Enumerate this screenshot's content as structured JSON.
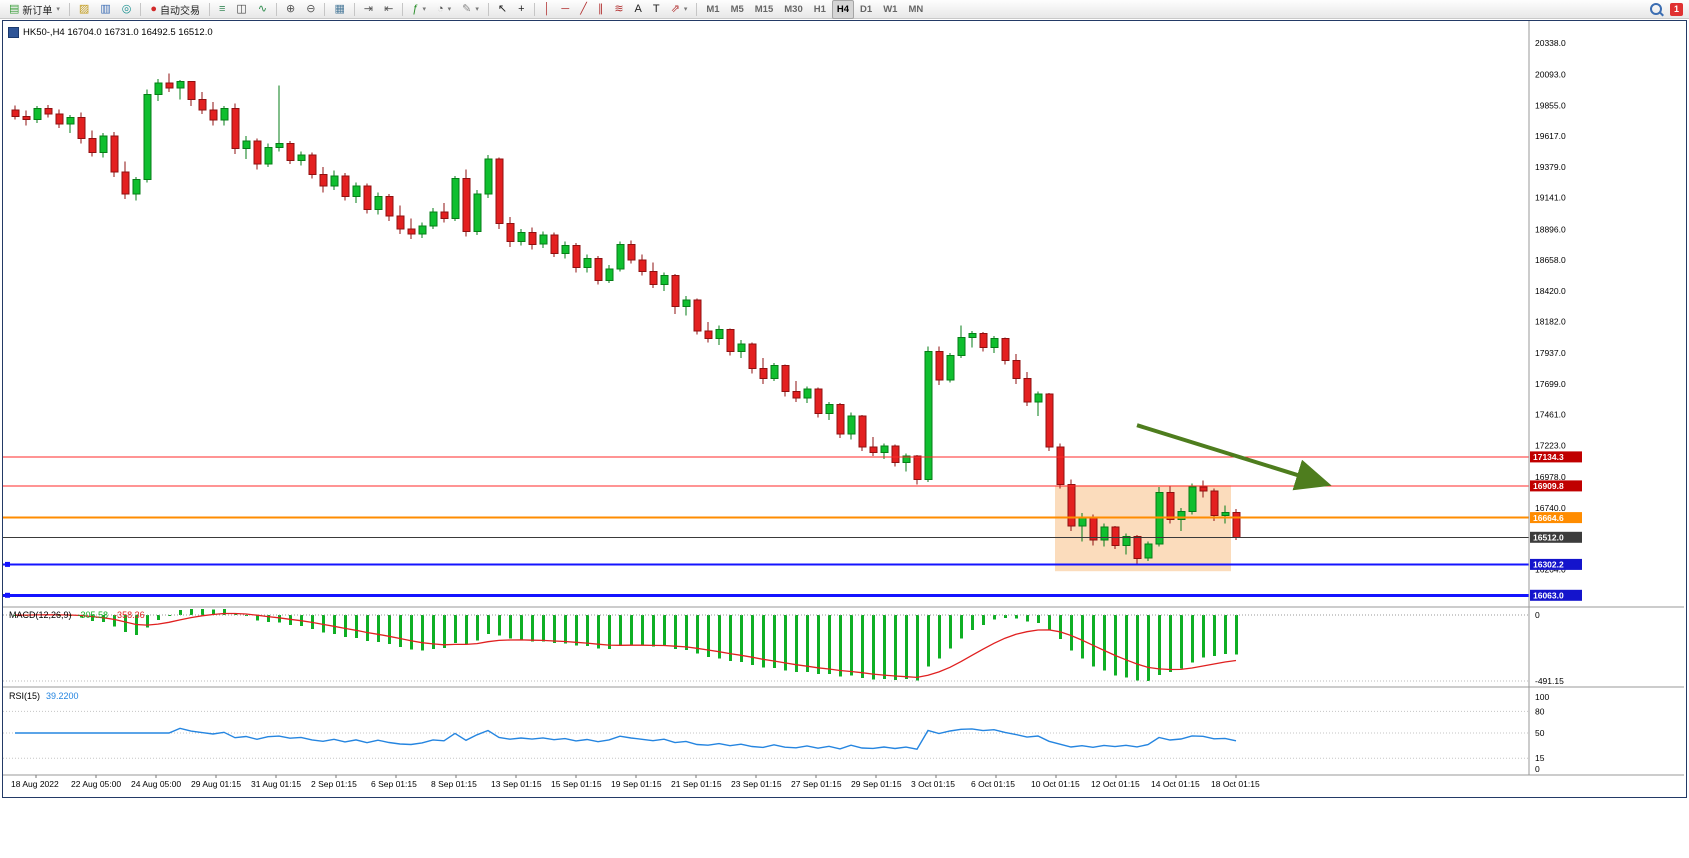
{
  "toolbar": {
    "badge": "1",
    "active_timeframe": "H4",
    "groups": [
      {
        "name": "order",
        "items": [
          {
            "name": "new-order-button",
            "glyph": "▤",
            "glyph_color": "#3a9e3a",
            "label": "新订单",
            "caret": true
          }
        ]
      },
      {
        "name": "quick-icons",
        "items": [
          {
            "name": "styles-icon",
            "glyph": "▨",
            "glyph_color": "#c39b1a"
          },
          {
            "name": "print-icon",
            "glyph": "▥",
            "glyph_color": "#3c6cb4"
          },
          {
            "name": "refresh-icon",
            "glyph": "◎",
            "glyph_color": "#168f8f"
          }
        ]
      },
      {
        "name": "autotrade",
        "items": [
          {
            "name": "auto-trading-button",
            "glyph": "●",
            "glyph_color": "#d22a2a",
            "label": "自动交易"
          }
        ]
      },
      {
        "name": "chart-type",
        "items": [
          {
            "name": "bar-chart-icon",
            "glyph": "≡",
            "glyph_color": "#3a8a5a"
          },
          {
            "name": "candlestick-icon",
            "glyph": "◫",
            "glyph_color": "#444444"
          },
          {
            "name": "line-chart-icon",
            "glyph": "∿",
            "glyph_color": "#2a8a4a"
          }
        ]
      },
      {
        "name": "zoom",
        "items": [
          {
            "name": "zoom-in-icon",
            "glyph": "⊕",
            "glyph_color": "#555555"
          },
          {
            "name": "zoom-out-icon",
            "glyph": "⊖",
            "glyph_color": "#555555"
          }
        ]
      },
      {
        "name": "windows",
        "items": [
          {
            "name": "tile-windows-icon",
            "glyph": "▦",
            "glyph_color": "#4a7a9a"
          }
        ]
      },
      {
        "name": "scroll",
        "items": [
          {
            "name": "auto-scroll-icon",
            "glyph": "⇥",
            "glyph_color": "#555555"
          },
          {
            "name": "chart-shift-icon",
            "glyph": "⇤",
            "glyph_color": "#555555"
          }
        ]
      },
      {
        "name": "tools",
        "items": [
          {
            "name": "indicators-icon",
            "glyph": "ƒ",
            "glyph_color": "#2a8f2a",
            "caret": true
          },
          {
            "name": "periods-icon",
            "glyph": "◔",
            "glyph_color": "#555555",
            "caret": true
          },
          {
            "name": "templates-icon",
            "glyph": "✎",
            "glyph_color": "#888888",
            "caret": true
          }
        ]
      },
      {
        "name": "cursor",
        "items": [
          {
            "name": "cursor-icon",
            "glyph": "↖",
            "glyph_color": "#222222"
          },
          {
            "name": "crosshair-icon",
            "glyph": "+",
            "glyph_color": "#222222"
          }
        ]
      },
      {
        "name": "draw",
        "items": [
          {
            "name": "vertical-line-icon",
            "glyph": "│",
            "glyph_color": "#b33333"
          },
          {
            "name": "horizontal-line-icon",
            "glyph": "─",
            "glyph_color": "#b33333"
          },
          {
            "name": "trendline-icon",
            "glyph": "╱",
            "glyph_color": "#b33333"
          },
          {
            "name": "channel-icon",
            "glyph": "∥",
            "glyph_color": "#b33333"
          },
          {
            "name": "fibonacci-icon",
            "glyph": "≋",
            "glyph_color": "#b33333"
          },
          {
            "name": "text-icon",
            "glyph": "A",
            "glyph_color": "#222222"
          },
          {
            "name": "label-icon",
            "glyph": "T",
            "glyph_color": "#222222"
          },
          {
            "name": "arrows-icon",
            "glyph": "⇗",
            "glyph_color": "#b33333",
            "caret": true
          }
        ]
      },
      {
        "name": "timeframes",
        "items": [
          {
            "name": "tf-m1",
            "tf": "M1"
          },
          {
            "name": "tf-m5",
            "tf": "M5"
          },
          {
            "name": "tf-m15",
            "tf": "M15"
          },
          {
            "name": "tf-m30",
            "tf": "M30"
          },
          {
            "name": "tf-h1",
            "tf": "H1"
          },
          {
            "name": "tf-h4",
            "tf": "H4"
          },
          {
            "name": "tf-d1",
            "tf": "D1"
          },
          {
            "name": "tf-w1",
            "tf": "W1"
          },
          {
            "name": "tf-mn",
            "tf": "MN"
          }
        ]
      }
    ]
  },
  "chart": {
    "title": "HK50-,H4 16704.0 16731.0 16492.5 16512.0",
    "up_color": "#0fbf2f",
    "up_border": "#067d17",
    "down_color": "#e32020",
    "down_border": "#8f1010",
    "price_axis_labels": [
      "20338.0",
      "20093.0",
      "19855.0",
      "19617.0",
      "19379.0",
      "19141.0",
      "18896.0",
      "18658.0",
      "18420.0",
      "18182.0",
      "17937.0",
      "17699.0",
      "17461.0",
      "17223.0",
      "16978.0",
      "16740.0",
      "16264.0"
    ],
    "h_lines": [
      {
        "price": 17134.3,
        "label": "17134.3",
        "color": "#ff2a2a",
        "width": 1,
        "label_bg": "#c00000"
      },
      {
        "price": 16909.8,
        "label": "16909.8",
        "color": "#ff2a2a",
        "width": 1,
        "label_bg": "#c00000"
      },
      {
        "price": 16664.6,
        "label": "16664.6",
        "color": "#ff8c00",
        "width": 2,
        "label_bg": "#ff8c00"
      },
      {
        "price": 16512.0,
        "label": "16512.0",
        "color": "#3a3a3a",
        "width": 1,
        "label_bg": "#3c3c3c"
      },
      {
        "price": 16302.2,
        "label": "16302.2",
        "color": "#1414ff",
        "width": 2,
        "label_bg": "#1414cc",
        "handle": true
      },
      {
        "price": 16063.0,
        "label": "16063.0",
        "color": "#1414ff",
        "width": 3,
        "label_bg": "#1414cc",
        "handle": true
      }
    ],
    "highlight_box": {
      "from_index": 95,
      "to_index": 110,
      "top_price": 16915,
      "bottom_price": 16250,
      "fill": "#f6b26b",
      "opacity": 0.45
    },
    "arrow": {
      "from_index": 102,
      "from_price": 17380,
      "to_index": 119,
      "to_price": 16930,
      "color": "#4e7d1e"
    },
    "candles": [
      [
        19820,
        19855,
        19745,
        19770
      ],
      [
        19770,
        19815,
        19700,
        19745
      ],
      [
        19745,
        19850,
        19720,
        19830
      ],
      [
        19830,
        19860,
        19760,
        19790
      ],
      [
        19790,
        19825,
        19680,
        19710
      ],
      [
        19710,
        19780,
        19640,
        19760
      ],
      [
        19760,
        19800,
        19560,
        19600
      ],
      [
        19600,
        19660,
        19460,
        19490
      ],
      [
        19490,
        19640,
        19450,
        19620
      ],
      [
        19620,
        19650,
        19300,
        19340
      ],
      [
        19340,
        19420,
        19130,
        19170
      ],
      [
        19170,
        19300,
        19120,
        19280
      ],
      [
        19280,
        19980,
        19260,
        19940
      ],
      [
        19940,
        20060,
        19890,
        20030
      ],
      [
        20030,
        20100,
        19960,
        19990
      ],
      [
        19990,
        20050,
        19900,
        20040
      ],
      [
        20040,
        20045,
        19850,
        19900
      ],
      [
        19900,
        19960,
        19790,
        19820
      ],
      [
        19820,
        19880,
        19700,
        19740
      ],
      [
        19740,
        19850,
        19700,
        19830
      ],
      [
        19830,
        19870,
        19480,
        19520
      ],
      [
        19520,
        19620,
        19440,
        19580
      ],
      [
        19580,
        19600,
        19360,
        19400
      ],
      [
        19400,
        19560,
        19380,
        19530
      ],
      [
        19530,
        20010,
        19500,
        19560
      ],
      [
        19560,
        19580,
        19400,
        19430
      ],
      [
        19430,
        19500,
        19390,
        19470
      ],
      [
        19470,
        19490,
        19290,
        19320
      ],
      [
        19320,
        19380,
        19180,
        19230
      ],
      [
        19230,
        19350,
        19200,
        19310
      ],
      [
        19310,
        19330,
        19120,
        19150
      ],
      [
        19150,
        19260,
        19100,
        19230
      ],
      [
        19230,
        19250,
        19020,
        19050
      ],
      [
        19050,
        19180,
        19010,
        19150
      ],
      [
        19150,
        19170,
        18960,
        19000
      ],
      [
        19000,
        19080,
        18860,
        18900
      ],
      [
        18900,
        18980,
        18820,
        18860
      ],
      [
        18860,
        18950,
        18830,
        18920
      ],
      [
        18920,
        19060,
        18900,
        19030
      ],
      [
        19030,
        19100,
        18950,
        18980
      ],
      [
        18980,
        19310,
        18960,
        19290
      ],
      [
        19290,
        19360,
        18840,
        18880
      ],
      [
        18880,
        19200,
        18850,
        19170
      ],
      [
        19170,
        19470,
        19140,
        19440
      ],
      [
        19440,
        19450,
        18900,
        18940
      ],
      [
        18940,
        18990,
        18760,
        18800
      ],
      [
        18800,
        18900,
        18770,
        18870
      ],
      [
        18870,
        18910,
        18740,
        18780
      ],
      [
        18780,
        18880,
        18750,
        18850
      ],
      [
        18850,
        18870,
        18680,
        18710
      ],
      [
        18710,
        18800,
        18670,
        18770
      ],
      [
        18770,
        18790,
        18560,
        18600
      ],
      [
        18600,
        18700,
        18560,
        18670
      ],
      [
        18670,
        18690,
        18470,
        18500
      ],
      [
        18500,
        18620,
        18480,
        18590
      ],
      [
        18590,
        18800,
        18570,
        18780
      ],
      [
        18780,
        18810,
        18630,
        18660
      ],
      [
        18660,
        18700,
        18540,
        18570
      ],
      [
        18570,
        18640,
        18440,
        18470
      ],
      [
        18470,
        18560,
        18420,
        18540
      ],
      [
        18540,
        18550,
        18240,
        18300
      ],
      [
        18300,
        18380,
        18230,
        18350
      ],
      [
        18350,
        18360,
        18080,
        18110
      ],
      [
        18110,
        18180,
        18020,
        18050
      ],
      [
        18050,
        18150,
        18000,
        18120
      ],
      [
        18120,
        18130,
        17920,
        17950
      ],
      [
        17950,
        18040,
        17900,
        18010
      ],
      [
        18010,
        18020,
        17780,
        17820
      ],
      [
        17820,
        17900,
        17700,
        17740
      ],
      [
        17740,
        17860,
        17720,
        17840
      ],
      [
        17840,
        17850,
        17600,
        17640
      ],
      [
        17640,
        17720,
        17560,
        17590
      ],
      [
        17590,
        17680,
        17550,
        17660
      ],
      [
        17660,
        17670,
        17440,
        17470
      ],
      [
        17470,
        17560,
        17420,
        17540
      ],
      [
        17540,
        17550,
        17280,
        17310
      ],
      [
        17310,
        17480,
        17270,
        17450
      ],
      [
        17450,
        17460,
        17180,
        17210
      ],
      [
        17210,
        17290,
        17140,
        17170
      ],
      [
        17170,
        17240,
        17120,
        17220
      ],
      [
        17220,
        17230,
        17060,
        17090
      ],
      [
        17090,
        17160,
        17020,
        17140
      ],
      [
        17140,
        17150,
        16920,
        16960
      ],
      [
        16960,
        17990,
        16940,
        17950
      ],
      [
        17950,
        17990,
        17690,
        17730
      ],
      [
        17730,
        17940,
        17710,
        17920
      ],
      [
        17920,
        18150,
        17900,
        18060
      ],
      [
        18060,
        18110,
        17980,
        18090
      ],
      [
        18090,
        18100,
        17950,
        17980
      ],
      [
        17980,
        18070,
        17940,
        18050
      ],
      [
        18050,
        18060,
        17850,
        17880
      ],
      [
        17880,
        17930,
        17700,
        17740
      ],
      [
        17740,
        17790,
        17530,
        17560
      ],
      [
        17560,
        17640,
        17450,
        17620
      ],
      [
        17620,
        17630,
        17180,
        17210
      ],
      [
        17210,
        17240,
        16890,
        16920
      ],
      [
        16920,
        16960,
        16560,
        16600
      ],
      [
        16600,
        16700,
        16480,
        16670
      ],
      [
        16670,
        16690,
        16450,
        16490
      ],
      [
        16490,
        16620,
        16440,
        16590
      ],
      [
        16590,
        16600,
        16420,
        16450
      ],
      [
        16450,
        16540,
        16380,
        16520
      ],
      [
        16520,
        16530,
        16310,
        16350
      ],
      [
        16350,
        16480,
        16330,
        16460
      ],
      [
        16460,
        16900,
        16440,
        16860
      ],
      [
        16860,
        16910,
        16620,
        16650
      ],
      [
        16650,
        16740,
        16560,
        16710
      ],
      [
        16710,
        16930,
        16690,
        16900
      ],
      [
        16900,
        16950,
        16820,
        16870
      ],
      [
        16870,
        16890,
        16640,
        16680
      ],
      [
        16680,
        16760,
        16620,
        16704
      ],
      [
        16704,
        16731,
        16492.5,
        16512
      ]
    ]
  },
  "macd": {
    "name": "MACD(12,26,9)",
    "value_main": "-305.58",
    "value_signal": "-358.36",
    "bar_color": "#0faf24",
    "signal_color": "#e02020",
    "axis_zero": "0",
    "axis_min": "-491.15"
  },
  "rsi": {
    "name": "RSI(15)",
    "value": "39.2200",
    "line_color": "#2585e0",
    "levels": [
      "100",
      "80",
      "50",
      "15",
      "0"
    ]
  },
  "time_axis": {
    "labels": [
      "18 Aug 2022",
      "22 Aug 05:00",
      "24 Aug 05:00",
      "29 Aug 01:15",
      "31 Aug 01:15",
      "2 Sep 01:15",
      "6 Sep 01:15",
      "8 Sep 01:15",
      "13 Sep 01:15",
      "15 Sep 01:15",
      "19 Sep 01:15",
      "21 Sep 01:15",
      "23 Sep 01:15",
      "27 Sep 01:15",
      "29 Sep 01:15",
      "3 Oct 01:15",
      "6 Oct 01:15",
      "10 Oct 01:15",
      "12 Oct 01:15",
      "14 Oct 01:15",
      "18 Oct 01:15"
    ]
  }
}
